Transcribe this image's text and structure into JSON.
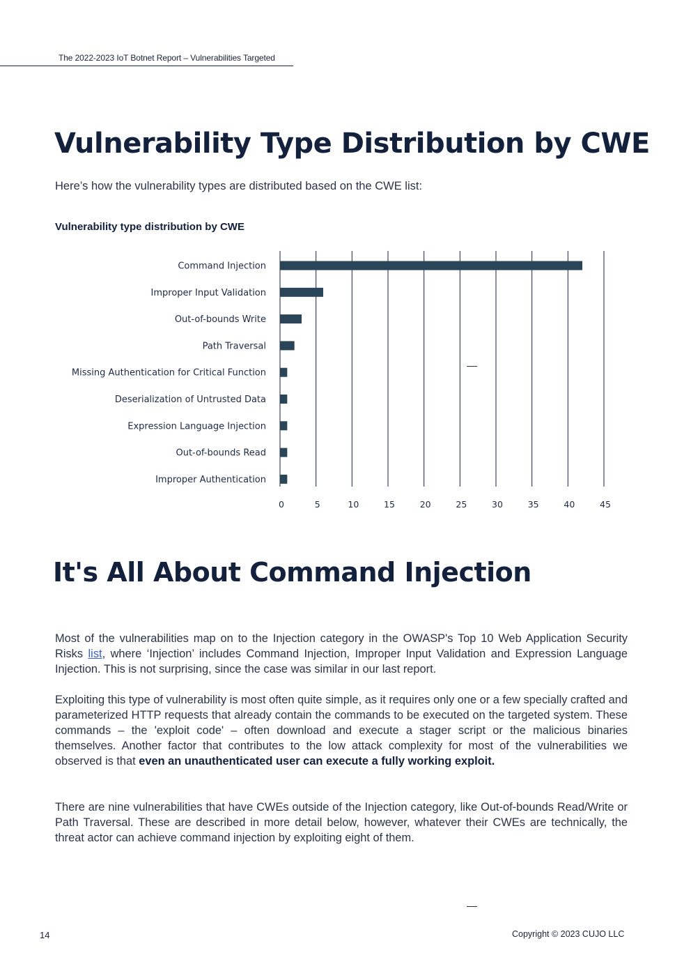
{
  "header": {
    "running_title": "The 2022-2023 IoT Botnet Report – Vulnerabilities Targeted"
  },
  "section1": {
    "title": "Vulnerability Type Distribution by CWE",
    "intro": "Here’s how the vulnerability types are distributed based on the CWE list:",
    "chart_caption": "Vulnerability type distribution by CWE"
  },
  "chart_data": {
    "type": "bar",
    "orientation": "horizontal",
    "title": "Vulnerability type distribution by CWE",
    "categories": [
      "Command Injection",
      "Improper Input Validation",
      "Out-of-bounds Write",
      "Path Traversal",
      "Missing Authentication for Critical Function",
      "Deserialization of Untrusted Data",
      "Expression Language Injection",
      "Out-of-bounds Read",
      "Improper Authentication"
    ],
    "values": [
      42,
      6,
      3,
      2,
      1,
      1,
      1,
      1,
      1
    ],
    "xlim": [
      0,
      45
    ],
    "xticks": [
      "0",
      "5",
      "10",
      "15",
      "20",
      "25",
      "30",
      "35",
      "40",
      "45"
    ],
    "grid": true,
    "bar_color": "#2b4558"
  },
  "section2": {
    "title": "It's All About Command Injection",
    "p1_before_link": "Most of the vulnerabilities map on to the Injection category in the OWASP's Top 10 Web Application Security Risks ",
    "p1_link": "list",
    "p1_after_link": ", where ‘Injection’ includes Command Injection, Improper Input Validation and Expression Language Injection. This is not surprising, since the case was similar in our last report.",
    "p2_text": "Exploiting this type of vulnerability is most often quite simple, as it requires only one or a few specially crafted and parameterized HTTP requests that already contain the commands to be executed on the targeted system. These commands – the 'exploit code' – often download and execute a stager script or the malicious binaries themselves. Another factor that contributes to the low attack complexity for most of the vulnerabilities we observed is that ",
    "p2_bold": "even an unauthenticated user can execute a fully working exploit.",
    "p3": "There are nine vulnerabilities that have CWEs outside of the Injection category, like Out-of-bounds Read/Write or Path Traversal. These are described in more detail below, however, whatever their CWEs are technically, the threat actor can achieve command injection by exploiting eight of them."
  },
  "footer": {
    "page_number": "14",
    "copyright": "Copyright © 2023 CUJO LLC"
  }
}
